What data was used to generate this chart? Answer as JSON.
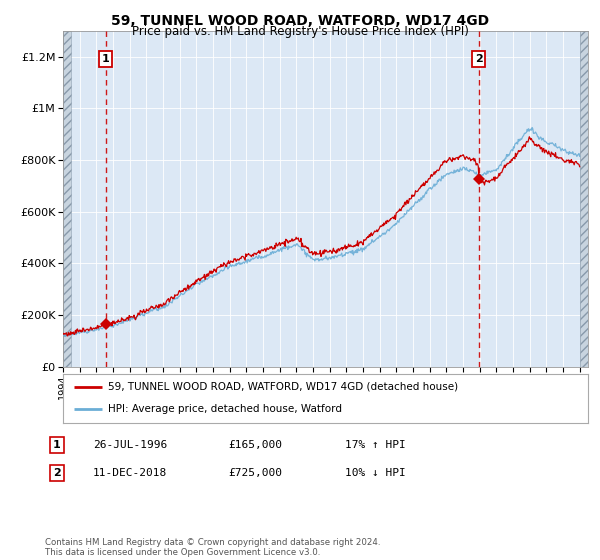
{
  "title": "59, TUNNEL WOOD ROAD, WATFORD, WD17 4GD",
  "subtitle": "Price paid vs. HM Land Registry's House Price Index (HPI)",
  "legend_line1": "59, TUNNEL WOOD ROAD, WATFORD, WD17 4GD (detached house)",
  "legend_line2": "HPI: Average price, detached house, Watford",
  "annotation1_date": "26-JUL-1996",
  "annotation1_price": "£165,000",
  "annotation1_hpi": "17% ↑ HPI",
  "annotation2_date": "11-DEC-2018",
  "annotation2_price": "£725,000",
  "annotation2_hpi": "10% ↓ HPI",
  "footer": "Contains HM Land Registry data © Crown copyright and database right 2024.\nThis data is licensed under the Open Government Licence v3.0.",
  "sale1_year": 1996.57,
  "sale1_price": 165000,
  "sale2_year": 2018.95,
  "sale2_price": 725000,
  "hpi_color": "#6baed6",
  "price_color": "#cc0000",
  "sale_marker_color": "#cc0000",
  "dashed_line_color": "#cc0000",
  "background_color": "#ffffff",
  "plot_bg_color": "#dce8f5",
  "ylim": [
    0,
    1300000
  ],
  "xlim_start": 1994,
  "xlim_end": 2025.5,
  "hatch_left_end": 1994.5,
  "hatch_right_start": 2025.0
}
